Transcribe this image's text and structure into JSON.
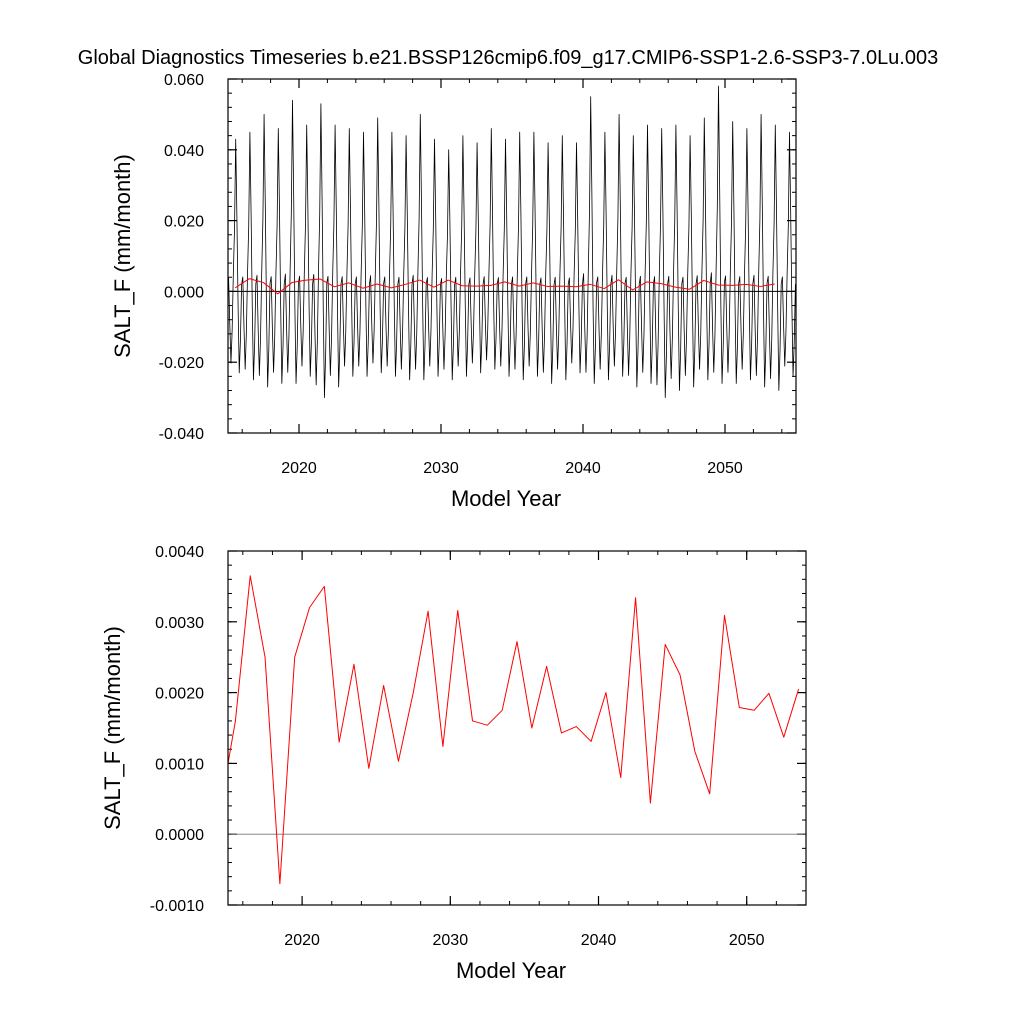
{
  "chart_data": [
    {
      "type": "line",
      "title": "Global Diagnostics Timeseries b.e21.BSSP126cmip6.f09_g17.CMIP6-SSP1-2.6-SSP3-7.0Lu.003",
      "xlabel": "Model Year",
      "ylabel": "SALT_F (mm/month)",
      "xlim": [
        2015,
        2055
      ],
      "ylim": [
        -0.04,
        0.06
      ],
      "xticks": [
        2020,
        2030,
        2040,
        2050
      ],
      "xtick_labels": [
        "2020",
        "2030",
        "2040",
        "2050"
      ],
      "yticks": [
        -0.04,
        -0.02,
        0.0,
        0.02,
        0.04,
        0.06
      ],
      "ytick_labels": [
        "-0.040",
        "-0.020",
        "0.000",
        "0.020",
        "0.040",
        "0.060"
      ],
      "reference_line": 0.0,
      "series": [
        {
          "kind": "monthly",
          "color": "#000000",
          "start_year": 2015,
          "years": 40,
          "monthly_cycle": [
            0.004,
            -0.01,
            -0.022,
            -0.012,
            0.005,
            0.018,
            0.044,
            0.022,
            -0.004,
            -0.025,
            -0.015,
            0.002
          ],
          "annual_peaks": [
            0.043,
            0.045,
            0.05,
            0.046,
            0.054,
            0.047,
            0.053,
            0.047,
            0.046,
            0.045,
            0.049,
            0.045,
            0.044,
            0.05,
            0.043,
            0.04,
            0.044,
            0.042,
            0.046,
            0.043,
            0.045,
            0.045,
            0.042,
            0.044,
            0.042,
            0.055,
            0.045,
            0.05,
            0.044,
            0.047,
            0.046,
            0.047,
            0.044,
            0.049,
            0.058,
            0.048,
            0.046,
            0.05,
            0.047,
            0.045
          ],
          "annual_troughs": [
            -0.023,
            -0.025,
            -0.027,
            -0.026,
            -0.026,
            -0.024,
            -0.03,
            -0.027,
            -0.024,
            -0.024,
            -0.023,
            -0.024,
            -0.025,
            -0.025,
            -0.024,
            -0.025,
            -0.024,
            -0.023,
            -0.022,
            -0.024,
            -0.025,
            -0.024,
            -0.026,
            -0.025,
            -0.023,
            -0.026,
            -0.025,
            -0.024,
            -0.027,
            -0.026,
            -0.03,
            -0.028,
            -0.027,
            -0.025,
            -0.026,
            -0.026,
            -0.025,
            -0.027,
            -0.028,
            -0.024
          ]
        },
        {
          "kind": "annual",
          "color": "#ff0000",
          "x": [
            2015.5,
            2016.5,
            2017.5,
            2018.5,
            2019.5,
            2020.5,
            2021.5,
            2022.5,
            2023.5,
            2024.5,
            2025.5,
            2026.5,
            2027.5,
            2028.5,
            2029.5,
            2030.5,
            2031.5,
            2032.5,
            2033.5,
            2034.5,
            2035.5,
            2036.5,
            2037.5,
            2038.5,
            2039.5,
            2040.5,
            2041.5,
            2042.5,
            2043.5,
            2044.5,
            2045.5,
            2046.5,
            2047.5,
            2048.5,
            2049.5,
            2050.5,
            2051.5,
            2052.5,
            2053.5
          ],
          "values": [
            0.001,
            0.0036,
            0.0025,
            -0.0007,
            0.0025,
            0.0032,
            0.0035,
            0.0013,
            0.0024,
            0.0009,
            0.0021,
            0.001,
            0.002,
            0.0032,
            0.0012,
            0.0032,
            0.0016,
            0.0015,
            0.0017,
            0.0027,
            0.0015,
            0.0024,
            0.0014,
            0.0015,
            0.0013,
            0.002,
            0.0008,
            0.0033,
            0.0004,
            0.0027,
            0.0022,
            0.0012,
            0.0006,
            0.0031,
            0.0018,
            0.0017,
            0.002,
            0.0014,
            0.0021
          ]
        }
      ]
    },
    {
      "type": "line",
      "title": "",
      "xlabel": "Model Year",
      "ylabel": "SALT_F (mm/month)",
      "xlim": [
        2015,
        2054
      ],
      "ylim": [
        -0.001,
        0.004
      ],
      "xticks": [
        2020,
        2030,
        2040,
        2050
      ],
      "xtick_labels": [
        "2020",
        "2030",
        "2040",
        "2050"
      ],
      "yticks": [
        -0.001,
        0.0,
        0.001,
        0.002,
        0.003,
        0.004
      ],
      "ytick_labels": [
        "-0.0010",
        "0.0000",
        "0.0010",
        "0.0020",
        "0.0030",
        "0.0040"
      ],
      "reference_line": 0.0,
      "series": [
        {
          "kind": "annual",
          "color": "#ff0000",
          "x": [
            2015.0,
            2015.5,
            2016.5,
            2017.5,
            2018.5,
            2019.5,
            2020.5,
            2021.5,
            2022.5,
            2023.5,
            2024.5,
            2025.5,
            2026.5,
            2027.5,
            2028.5,
            2029.5,
            2030.5,
            2031.5,
            2032.5,
            2033.5,
            2034.5,
            2035.5,
            2036.5,
            2037.5,
            2038.5,
            2039.5,
            2040.5,
            2041.5,
            2042.5,
            2043.5,
            2044.5,
            2045.5,
            2046.5,
            2047.5,
            2048.5,
            2049.5,
            2050.5,
            2051.5,
            2052.5,
            2053.5
          ],
          "values": [
            0.001,
            0.0016,
            0.00365,
            0.0025,
            -0.0007,
            0.0025,
            0.0032,
            0.0035,
            0.0013,
            0.0024,
            0.00093,
            0.0021,
            0.00103,
            0.002,
            0.00315,
            0.00124,
            0.00316,
            0.0016,
            0.00154,
            0.00175,
            0.00272,
            0.0015,
            0.00237,
            0.00143,
            0.00152,
            0.00131,
            0.002,
            0.0008,
            0.00334,
            0.00044,
            0.00268,
            0.00225,
            0.00117,
            0.00057,
            0.00309,
            0.00179,
            0.00175,
            0.00199,
            0.00137,
            0.00205
          ]
        }
      ]
    }
  ]
}
